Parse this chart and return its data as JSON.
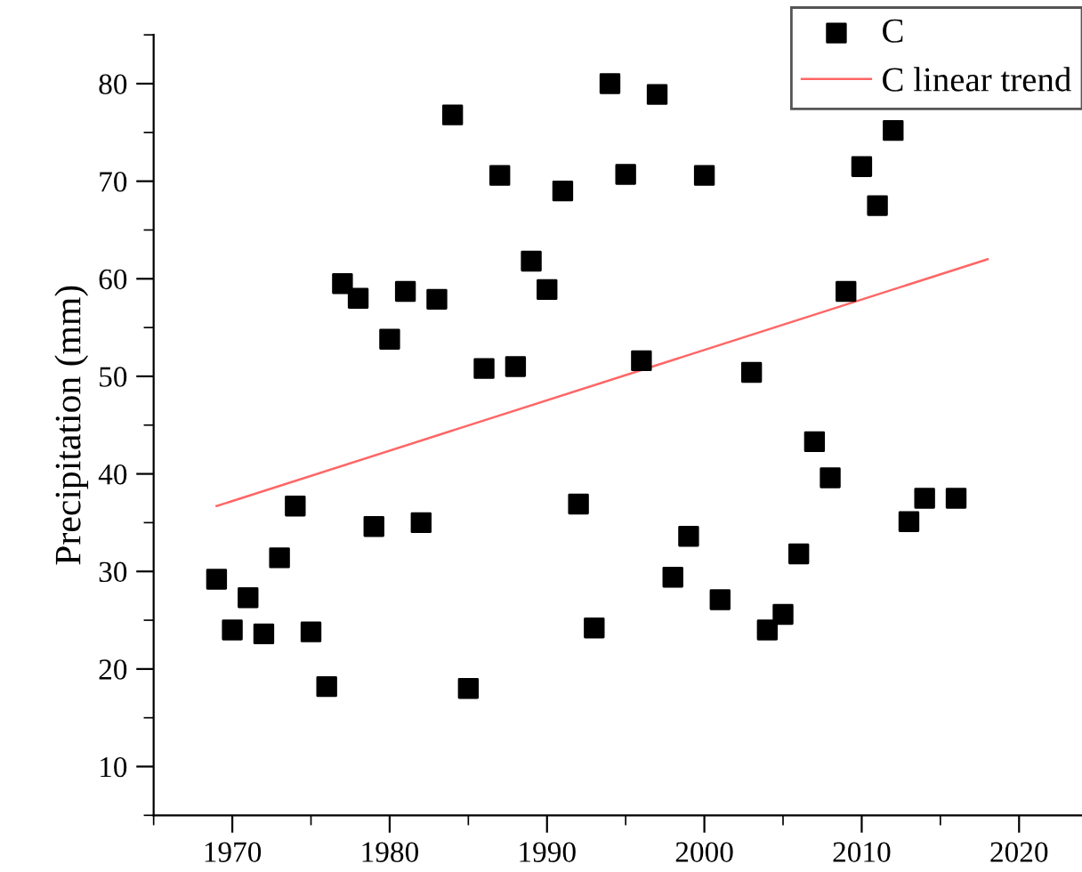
{
  "chart_data": {
    "type": "scatter",
    "ylabel": "Precipitation (mm)",
    "xlim": [
      1965,
      2024
    ],
    "ylim": [
      5,
      85
    ],
    "xticks": [
      1970,
      1980,
      1990,
      2000,
      2010,
      2020
    ],
    "yticks": [
      10,
      20,
      30,
      40,
      50,
      60,
      70,
      80
    ],
    "grid": false,
    "legend": "top right",
    "series": [
      {
        "name": "C",
        "marker": "square",
        "color": "#000000",
        "x": [
          1969,
          1970,
          1971,
          1972,
          1973,
          1974,
          1975,
          1976,
          1977,
          1978,
          1979,
          1980,
          1981,
          1982,
          1983,
          1984,
          1985,
          1986,
          1987,
          1988,
          1989,
          1990,
          1991,
          1992,
          1993,
          1994,
          1995,
          1996,
          1997,
          1998,
          1999,
          2000,
          2001,
          2003,
          2004,
          2005,
          2006,
          2007,
          2008,
          2009,
          2010,
          2011,
          2012,
          2013,
          2014,
          2016
        ],
        "values": [
          29.2,
          24,
          27.3,
          23.6,
          31.4,
          36.7,
          23.8,
          18.2,
          59.5,
          58,
          34.6,
          53.8,
          58.7,
          35,
          57.9,
          76.8,
          18,
          50.8,
          70.6,
          51,
          61.8,
          58.9,
          69,
          36.9,
          24.2,
          80,
          70.7,
          51.6,
          78.9,
          29.4,
          33.6,
          70.6,
          27.1,
          50.4,
          24,
          25.6,
          31.8,
          43.3,
          39.6,
          58.7,
          71.5,
          67.5,
          75.2,
          35.1,
          37.5,
          37.5
        ]
      },
      {
        "name": "C linear trend",
        "type": "line",
        "color": "#ff6666",
        "x": [
          1969,
          2018
        ],
        "values": [
          36.7,
          62
        ]
      }
    ]
  }
}
